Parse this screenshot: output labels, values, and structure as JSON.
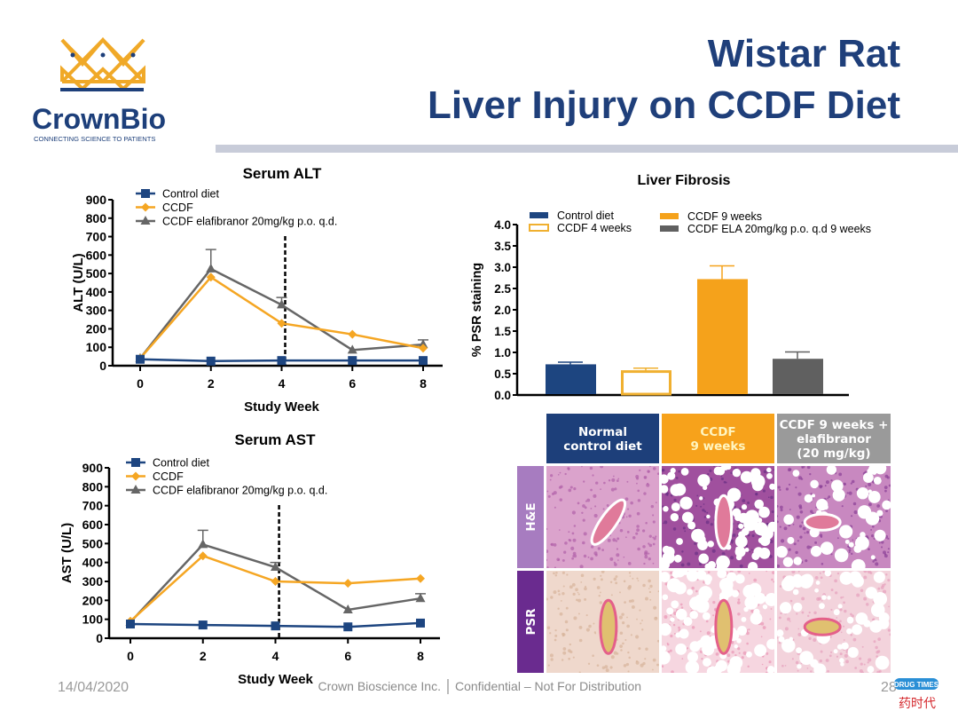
{
  "header": {
    "logo_text": "CrownBio",
    "logo_tagline": "CONNECTING SCIENCE TO PATIENTS",
    "title_line1": "Wistar Rat",
    "title_line2": "Liver Injury on CCDF Diet"
  },
  "colors": {
    "navy": "#1d4580",
    "orange": "#f5a21b",
    "gray": "#666666",
    "title": "#1f3f7a",
    "separator": "#c8ccd9"
  },
  "chart_data": [
    {
      "type": "line",
      "title": "Serum ALT",
      "xlabel": "Study Week",
      "ylabel": "ALT (U/L)",
      "x": [
        0,
        2,
        4,
        6,
        8
      ],
      "xticks": [
        "0",
        "2",
        "4",
        "6",
        "8"
      ],
      "yticks": [
        "0",
        "100",
        "200",
        "300",
        "400",
        "500",
        "600",
        "700",
        "800",
        "900"
      ],
      "ylim": [
        0,
        900
      ],
      "vline_week": 4.1,
      "legend": "top-left",
      "series": [
        {
          "name": "Control diet",
          "marker": "square",
          "color": "#1d4580",
          "values": [
            35,
            25,
            28,
            28,
            28
          ]
        },
        {
          "name": "CCDF",
          "marker": "diamond",
          "color": "#f5a623",
          "values": [
            40,
            480,
            230,
            170,
            95
          ]
        },
        {
          "name": "CCDF elafibranor 20mg/kg p.o. q.d.",
          "marker": "triangle",
          "color": "#666666",
          "values": [
            40,
            525,
            330,
            85,
            115
          ],
          "error_upper": [
            null,
            630,
            370,
            null,
            140
          ]
        }
      ]
    },
    {
      "type": "line",
      "title": "Serum AST",
      "xlabel": "Study Week",
      "ylabel": "AST (U/L)",
      "x": [
        0,
        2,
        4,
        6,
        8
      ],
      "xticks": [
        "0",
        "2",
        "4",
        "6",
        "8"
      ],
      "yticks": [
        "0",
        "100",
        "200",
        "300",
        "400",
        "500",
        "600",
        "700",
        "800",
        "900"
      ],
      "ylim": [
        0,
        900
      ],
      "vline_week": 4.1,
      "legend": "top-left",
      "series": [
        {
          "name": "Control diet",
          "marker": "square",
          "color": "#1d4580",
          "values": [
            75,
            70,
            65,
            60,
            80
          ]
        },
        {
          "name": "CCDF",
          "marker": "diamond",
          "color": "#f5a623",
          "values": [
            90,
            435,
            300,
            290,
            315
          ]
        },
        {
          "name": "CCDF elafibranor 20mg/kg p.o. q.d.",
          "marker": "triangle",
          "color": "#666666",
          "values": [
            85,
            495,
            375,
            150,
            210
          ],
          "error_upper": [
            null,
            570,
            400,
            null,
            235
          ]
        }
      ]
    },
    {
      "type": "bar",
      "title": "Liver Fibrosis",
      "ylabel": "% PSR staining",
      "yticks": [
        "0.0",
        "0.5",
        "1.0",
        "1.5",
        "2.0",
        "2.5",
        "3.0",
        "3.5",
        "4.0"
      ],
      "ylim": [
        0,
        4.0
      ],
      "legend": "top",
      "categories": [
        "Control diet",
        "CCDF 4 weeks",
        "CCDF 9 weeks",
        "CCDF ELA 20mg/kg p.o. q.d 9 weeks"
      ],
      "values": [
        0.72,
        0.55,
        2.72,
        0.85
      ],
      "error_upper": [
        0.77,
        0.63,
        3.03,
        1.01
      ],
      "fills": [
        "#1d4580",
        "#ffffff",
        "#f5a21b",
        "#606060"
      ],
      "strokes": [
        "#1d4580",
        "#f0b030",
        "#f5a21b",
        "#606060"
      ]
    }
  ],
  "histology": {
    "columns": [
      "Normal control diet",
      "CCDF 9 weeks",
      "CCDF 9 weeks + elafibranor (20 mg/kg)"
    ],
    "column_lines": [
      [
        "Normal",
        "control diet"
      ],
      [
        "CCDF",
        "9 weeks"
      ],
      [
        "CCDF 9 weeks +",
        "elafibranor",
        "(20 mg/kg)"
      ]
    ],
    "column_colors": [
      "#1d3f7a",
      "#f7a21b",
      "#9a9a9a"
    ],
    "column_text_colors": [
      "#ffffff",
      "#fff5c0",
      "#ffffff"
    ],
    "rows": [
      "H&E",
      "PSR"
    ],
    "row_colors": [
      "#a77cc0",
      "#6a2b8f"
    ]
  },
  "footer": {
    "date": "14/04/2020",
    "company": "Crown Bioscience Inc.",
    "confidential": "Confidential – Not For Distribution",
    "page": "28",
    "watermark_en": "DRUG TIMES",
    "watermark_cn": "药时代"
  }
}
